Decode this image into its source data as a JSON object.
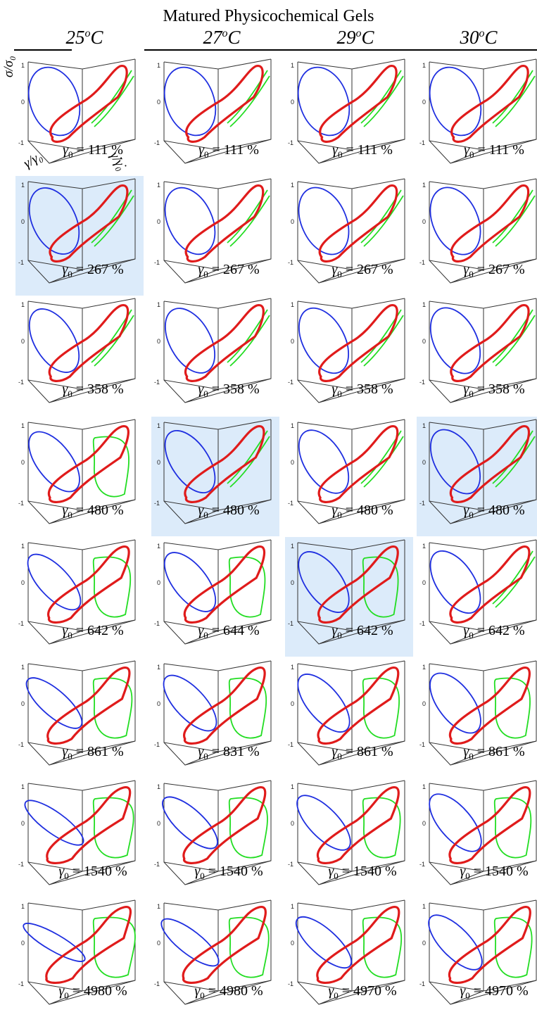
{
  "title": "Matured Physicochemical Gels",
  "column_headers": [
    "25",
    "27",
    "29",
    "30"
  ],
  "temp_superscript": "o",
  "temp_unit": "C",
  "colors": {
    "viscous_projection": "#1f2fe0",
    "elastic_projection": "#22dd22",
    "lissajous_3d": "#e01b1b",
    "highlight": "#dcebfa"
  },
  "axis_labels": {
    "stress": "σ/σ₀",
    "strain": "γ/γ₀",
    "strain_rate": "γ̇/γ̇₀"
  },
  "gamma_symbol": "γ",
  "gamma_subscript": "0",
  "gamma_unit": "%",
  "chart_data": {
    "type": "scatter",
    "description_type": "3D Lissajous-Bowditch plot grid",
    "rows": [
      {
        "amplitudes": [
          "111",
          "111",
          "111",
          "111"
        ]
      },
      {
        "amplitudes": [
          "267",
          "267",
          "267",
          "267"
        ]
      },
      {
        "amplitudes": [
          "358",
          "358",
          "358",
          "358"
        ]
      },
      {
        "amplitudes": [
          "480",
          "480",
          "480",
          "480"
        ]
      },
      {
        "amplitudes": [
          "642",
          "644",
          "642",
          "642"
        ]
      },
      {
        "amplitudes": [
          "861",
          "831",
          "861",
          "861"
        ]
      },
      {
        "amplitudes": [
          "1540",
          "1540",
          "1540",
          "1540"
        ]
      },
      {
        "amplitudes": [
          "4980",
          "4980",
          "4970",
          "4970"
        ]
      }
    ],
    "highlighted": [
      [
        1,
        0
      ],
      [
        3,
        1
      ],
      [
        3,
        3
      ],
      [
        4,
        2
      ]
    ],
    "tick_labels": [
      "-1",
      "0",
      "1"
    ],
    "axis_ranges": {
      "stress": [
        -1,
        1
      ],
      "strain": [
        -1,
        1
      ],
      "strain_rate": [
        -1,
        1
      ]
    }
  }
}
